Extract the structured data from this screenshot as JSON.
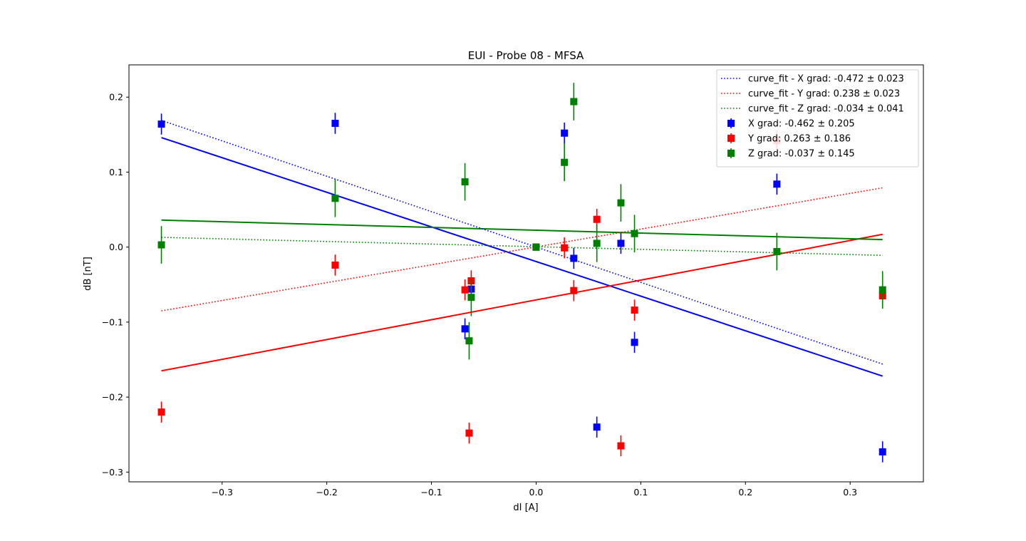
{
  "chart_data": {
    "type": "scatter",
    "title": "EUI - Probe 08 - MFSA",
    "xlabel": "dI [A]",
    "ylabel": "dB [nT]",
    "xlim": [
      -0.389,
      0.37
    ],
    "ylim": [
      -0.313,
      0.243
    ],
    "xticks": [
      -0.3,
      -0.2,
      -0.1,
      0.0,
      0.1,
      0.2,
      0.3
    ],
    "xtick_labels": [
      "−0.3",
      "−0.2",
      "−0.1",
      "0.0",
      "0.1",
      "0.2",
      "0.3"
    ],
    "yticks": [
      -0.3,
      -0.2,
      -0.1,
      0.0,
      0.1,
      0.2
    ],
    "ytick_labels": [
      "−0.3",
      "−0.2",
      "−0.1",
      "0.0",
      "0.1",
      "0.2"
    ],
    "grid": false,
    "legend_position": "top-right",
    "fits": [
      {
        "label": "curve_fit - X grad: -0.472 ± 0.023",
        "color": "#0000ff",
        "style": "dotted",
        "x": [
          -0.358,
          0.331
        ],
        "y": [
          0.169,
          -0.156
        ]
      },
      {
        "label": "curve_fit - Y grad: 0.238 ± 0.023",
        "color": "#ff0000",
        "style": "dotted",
        "x": [
          -0.358,
          0.331
        ],
        "y": [
          -0.085,
          0.079
        ]
      },
      {
        "label": "curve_fit - Z grad: -0.034 ± 0.041",
        "color": "#008000",
        "style": "dotted",
        "x": [
          -0.358,
          0.331
        ],
        "y": [
          0.013,
          -0.011
        ]
      }
    ],
    "lines": [
      {
        "color": "#0000ff",
        "x": [
          -0.358,
          0.331
        ],
        "y": [
          0.146,
          -0.172
        ]
      },
      {
        "color": "#ff0000",
        "x": [
          -0.358,
          0.331
        ],
        "y": [
          -0.165,
          0.017
        ]
      },
      {
        "color": "#008000",
        "x": [
          -0.358,
          0.331
        ],
        "y": [
          0.036,
          0.01
        ]
      }
    ],
    "series": [
      {
        "name": "X grad: -0.462 ± 0.205",
        "color": "#0000ff",
        "points": [
          {
            "x": -0.358,
            "y": 0.164,
            "err": 0.014
          },
          {
            "x": -0.192,
            "y": 0.165,
            "err": 0.014
          },
          {
            "x": -0.068,
            "y": -0.109,
            "err": 0.014
          },
          {
            "x": -0.062,
            "y": -0.056,
            "err": 0.014
          },
          {
            "x": 0.0,
            "y": 0.0,
            "err": 0.0
          },
          {
            "x": 0.027,
            "y": 0.152,
            "err": 0.014
          },
          {
            "x": 0.036,
            "y": -0.015,
            "err": 0.014
          },
          {
            "x": 0.058,
            "y": -0.24,
            "err": 0.014
          },
          {
            "x": 0.081,
            "y": 0.005,
            "err": 0.014
          },
          {
            "x": 0.094,
            "y": -0.127,
            "err": 0.014
          },
          {
            "x": 0.23,
            "y": 0.084,
            "err": 0.014
          },
          {
            "x": 0.331,
            "y": -0.273,
            "err": 0.014
          }
        ]
      },
      {
        "name": "Y grad: 0.263 ± 0.186",
        "color": "#ff0000",
        "points": [
          {
            "x": -0.358,
            "y": -0.22,
            "err": 0.014
          },
          {
            "x": -0.192,
            "y": -0.024,
            "err": 0.014
          },
          {
            "x": -0.068,
            "y": -0.057,
            "err": 0.014
          },
          {
            "x": -0.064,
            "y": -0.248,
            "err": 0.014
          },
          {
            "x": -0.062,
            "y": -0.045,
            "err": 0.014
          },
          {
            "x": 0.0,
            "y": 0.0,
            "err": 0.0
          },
          {
            "x": 0.027,
            "y": -0.001,
            "err": 0.014
          },
          {
            "x": 0.036,
            "y": -0.058,
            "err": 0.014
          },
          {
            "x": 0.058,
            "y": 0.037,
            "err": 0.014
          },
          {
            "x": 0.081,
            "y": -0.265,
            "err": 0.014
          },
          {
            "x": 0.094,
            "y": -0.084,
            "err": 0.014
          },
          {
            "x": 0.23,
            "y": 0.142,
            "err": 0.014
          },
          {
            "x": 0.331,
            "y": -0.065,
            "err": 0.014
          }
        ]
      },
      {
        "name": "Z grad: -0.037 ± 0.145",
        "color": "#008000",
        "points": [
          {
            "x": -0.358,
            "y": 0.003,
            "err": 0.025
          },
          {
            "x": -0.192,
            "y": 0.065,
            "err": 0.025
          },
          {
            "x": -0.068,
            "y": 0.087,
            "err": 0.025
          },
          {
            "x": -0.064,
            "y": -0.125,
            "err": 0.025
          },
          {
            "x": -0.062,
            "y": -0.067,
            "err": 0.025
          },
          {
            "x": 0.0,
            "y": 0.0,
            "err": 0.0
          },
          {
            "x": 0.027,
            "y": 0.113,
            "err": 0.025
          },
          {
            "x": 0.036,
            "y": 0.194,
            "err": 0.025
          },
          {
            "x": 0.058,
            "y": 0.005,
            "err": 0.025
          },
          {
            "x": 0.081,
            "y": 0.059,
            "err": 0.025
          },
          {
            "x": 0.094,
            "y": 0.018,
            "err": 0.025
          },
          {
            "x": 0.23,
            "y": -0.006,
            "err": 0.025
          },
          {
            "x": 0.331,
            "y": -0.057,
            "err": 0.025
          }
        ]
      }
    ]
  }
}
